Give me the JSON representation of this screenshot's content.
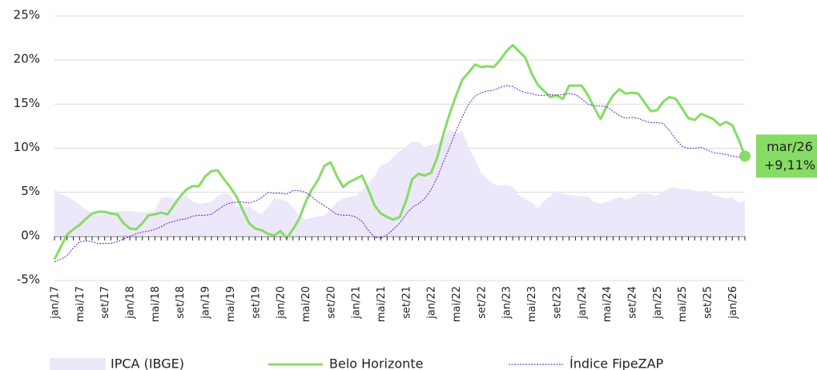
{
  "chart_data": {
    "type": "line",
    "categories": [
      "jan/17",
      null,
      null,
      null,
      "mai/17",
      null,
      null,
      null,
      "set/17",
      null,
      null,
      null,
      "jan/18",
      null,
      null,
      null,
      "mai/18",
      null,
      null,
      null,
      "set/18",
      null,
      null,
      null,
      "jan/19",
      null,
      null,
      null,
      "mai/19",
      null,
      null,
      null,
      "set/19",
      null,
      null,
      null,
      "jan/20",
      null,
      null,
      null,
      "mai/20",
      null,
      null,
      null,
      "set/20",
      null,
      null,
      null,
      "jan/21",
      null,
      null,
      null,
      "mai/21",
      null,
      null,
      null,
      "set/21",
      null,
      null,
      null,
      "jan/22",
      null,
      null,
      null,
      "mai/22",
      null,
      null,
      null,
      "set/22",
      null,
      null,
      null,
      "jan/23",
      null,
      null,
      null,
      "mai/23",
      null,
      null,
      null,
      "set/23",
      null,
      null,
      null,
      "jan/24",
      null,
      null,
      null,
      "mai/24",
      null,
      null,
      null,
      "set/24",
      null,
      null,
      null,
      "jan/25",
      null,
      null,
      null,
      "mai/25",
      null,
      null,
      null,
      "set/25",
      null,
      null,
      null,
      "jan/26",
      null,
      null
    ],
    "series": [
      {
        "name": "IPCA (IBGE)",
        "kind": "area",
        "color": "#ede7fa",
        "values": [
          5.4,
          4.8,
          4.6,
          4.1,
          3.6,
          3.0,
          2.7,
          2.5,
          2.5,
          2.7,
          2.8,
          2.9,
          2.9,
          2.8,
          2.7,
          2.8,
          2.9,
          4.4,
          4.5,
          4.2,
          4.5,
          4.6,
          4.0,
          3.7,
          3.8,
          3.9,
          4.6,
          4.9,
          4.7,
          3.4,
          3.2,
          3.4,
          2.9,
          2.5,
          3.3,
          4.3,
          4.2,
          4.0,
          3.3,
          2.4,
          1.9,
          2.1,
          2.3,
          2.4,
          3.1,
          3.9,
          4.3,
          4.5,
          4.6,
          5.2,
          6.1,
          6.8,
          8.1,
          8.3,
          9.0,
          9.7,
          10.2,
          10.7,
          10.7,
          10.1,
          10.4,
          10.5,
          11.3,
          12.1,
          11.7,
          11.9,
          10.1,
          8.7,
          7.2,
          6.5,
          5.9,
          5.8,
          5.8,
          5.6,
          4.7,
          4.2,
          3.9,
          3.2,
          4.0,
          4.6,
          5.2,
          4.8,
          4.7,
          4.6,
          4.5,
          4.5,
          3.9,
          3.7,
          3.9,
          4.2,
          4.5,
          4.2,
          4.4,
          4.8,
          4.9,
          4.8,
          4.6,
          5.1,
          5.5,
          5.5,
          5.3,
          5.4,
          5.2,
          5.1,
          5.2,
          4.7,
          4.5,
          4.3,
          4.4,
          3.8,
          4.1
        ]
      },
      {
        "name": "Belo Horizonte",
        "kind": "line",
        "color": "#86dc64",
        "values": [
          -2.6,
          -1.2,
          0.2,
          0.8,
          1.3,
          2.0,
          2.6,
          2.8,
          2.8,
          2.6,
          2.5,
          1.5,
          0.9,
          0.8,
          1.5,
          2.4,
          2.5,
          2.7,
          2.5,
          3.5,
          4.5,
          5.3,
          5.7,
          5.7,
          6.8,
          7.4,
          7.5,
          6.5,
          5.6,
          4.5,
          3.0,
          1.5,
          0.9,
          0.7,
          0.3,
          0.1,
          0.6,
          -0.2,
          0.8,
          2.0,
          3.9,
          5.3,
          6.4,
          8.0,
          8.4,
          6.8,
          5.6,
          6.2,
          6.5,
          6.9,
          5.3,
          3.5,
          2.6,
          2.2,
          1.9,
          2.2,
          4.0,
          6.5,
          7.1,
          6.9,
          7.2,
          9.0,
          11.7,
          14.0,
          16.0,
          17.8,
          18.6,
          19.5,
          19.2,
          19.3,
          19.2,
          20.0,
          21.0,
          21.7,
          21.0,
          20.3,
          18.5,
          17.2,
          16.5,
          15.8,
          16.0,
          15.6,
          17.1,
          17.1,
          17.1,
          16.0,
          14.6,
          13.3,
          14.8,
          16.0,
          16.7,
          16.2,
          16.3,
          16.2,
          15.2,
          14.2,
          14.3,
          15.3,
          15.8,
          15.6,
          14.5,
          13.4,
          13.2,
          13.9,
          13.6,
          13.3,
          12.6,
          13.0,
          12.6,
          11.0,
          9.11
        ]
      },
      {
        "name": "Índice FipeZAP",
        "kind": "dotted",
        "color": "#7a3fc9",
        "values": [
          -2.9,
          -2.6,
          -2.2,
          -1.3,
          -0.6,
          -0.5,
          -0.6,
          -0.8,
          -0.8,
          -0.8,
          -0.6,
          -0.3,
          0.0,
          0.3,
          0.5,
          0.6,
          0.8,
          1.1,
          1.5,
          1.7,
          1.9,
          2.0,
          2.3,
          2.4,
          2.4,
          2.5,
          3.0,
          3.5,
          3.8,
          3.9,
          3.9,
          3.8,
          4.0,
          4.4,
          5.0,
          4.9,
          4.9,
          4.8,
          5.2,
          5.2,
          5.0,
          4.5,
          3.9,
          3.5,
          3.0,
          2.5,
          2.4,
          2.4,
          2.2,
          1.7,
          0.7,
          -0.1,
          -0.2,
          0.2,
          0.8,
          1.5,
          2.5,
          3.3,
          3.7,
          4.3,
          5.3,
          6.7,
          8.5,
          10.2,
          12.0,
          13.6,
          15.0,
          15.9,
          16.3,
          16.5,
          16.6,
          16.9,
          17.1,
          17.0,
          16.6,
          16.3,
          16.2,
          16.0,
          16.0,
          16.1,
          16.0,
          16.1,
          16.2,
          16.1,
          15.6,
          15.0,
          14.8,
          14.8,
          14.7,
          14.2,
          13.7,
          13.4,
          13.5,
          13.4,
          13.1,
          12.9,
          12.9,
          12.8,
          12.0,
          11.0,
          10.2,
          10.0,
          10.0,
          10.1,
          9.8,
          9.5,
          9.4,
          9.3,
          9.1,
          9.0,
          8.9
        ]
      }
    ],
    "end_label": {
      "category": "mar/26",
      "text": "+9,11%"
    },
    "ylim": [
      -5,
      25
    ],
    "yticks": [
      {
        "value": -5,
        "label": "-5%"
      },
      {
        "value": 0,
        "label": "0%"
      },
      {
        "value": 5,
        "label": "5%"
      },
      {
        "value": 10,
        "label": "10%"
      },
      {
        "value": 15,
        "label": "15%"
      },
      {
        "value": 20,
        "label": "20%"
      },
      {
        "value": 25,
        "label": "25%"
      }
    ],
    "grid": true,
    "legend": "bottom"
  }
}
